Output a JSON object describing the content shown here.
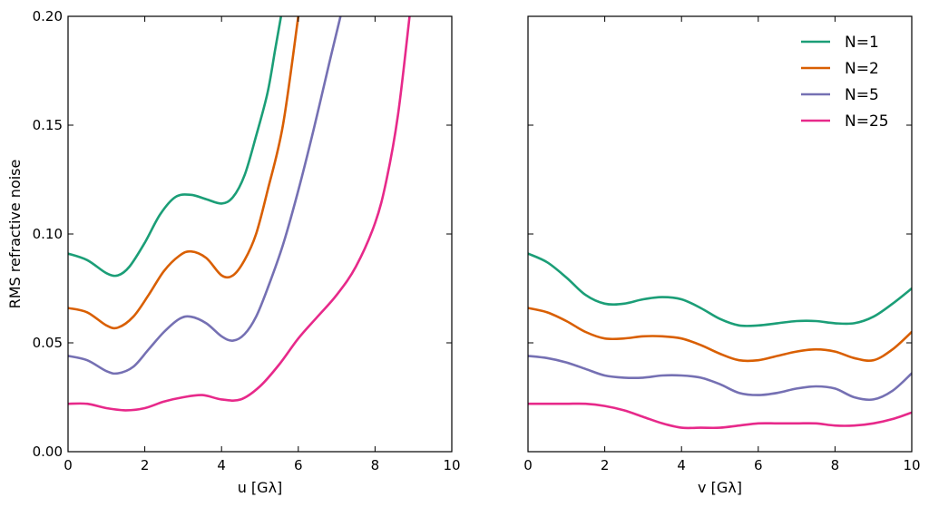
{
  "chart_data": [
    {
      "type": "line",
      "xlabel": "u [Gλ]",
      "ylabel": "RMS refractive noise",
      "xlim": [
        0,
        10
      ],
      "ylim": [
        0,
        0.2
      ],
      "xticks": [
        0,
        2,
        4,
        6,
        8,
        10
      ],
      "xtick_labels": [
        "0",
        "2",
        "4",
        "6",
        "8",
        "10"
      ],
      "yticks": [
        0,
        0.05,
        0.1,
        0.15,
        0.2
      ],
      "ytick_labels": [
        "0.00",
        "0.05",
        "0.10",
        "0.15",
        "0.20"
      ],
      "grid": false,
      "series": [
        {
          "name": "N=1",
          "color": "#1b9e77",
          "x": [
            0,
            0.5,
            1.0,
            1.3,
            1.6,
            2.0,
            2.4,
            2.8,
            3.2,
            3.6,
            4.0,
            4.3,
            4.6,
            4.9,
            5.2,
            5.4,
            5.55
          ],
          "y": [
            0.091,
            0.088,
            0.082,
            0.081,
            0.085,
            0.096,
            0.109,
            0.117,
            0.118,
            0.116,
            0.114,
            0.117,
            0.127,
            0.145,
            0.165,
            0.185,
            0.2
          ]
        },
        {
          "name": "N=2",
          "color": "#d95f02",
          "x": [
            0,
            0.5,
            1.0,
            1.3,
            1.7,
            2.1,
            2.5,
            2.9,
            3.2,
            3.6,
            4.0,
            4.3,
            4.6,
            4.9,
            5.2,
            5.6,
            6.0
          ],
          "y": [
            0.066,
            0.064,
            0.058,
            0.057,
            0.062,
            0.072,
            0.083,
            0.09,
            0.092,
            0.089,
            0.081,
            0.081,
            0.088,
            0.1,
            0.12,
            0.15,
            0.2
          ]
        },
        {
          "name": "N=5",
          "color": "#7570b3",
          "x": [
            0,
            0.5,
            1.0,
            1.3,
            1.7,
            2.1,
            2.5,
            2.9,
            3.2,
            3.6,
            4.0,
            4.3,
            4.6,
            4.9,
            5.2,
            5.6,
            6.0,
            6.4,
            6.8,
            7.1
          ],
          "y": [
            0.044,
            0.042,
            0.037,
            0.036,
            0.039,
            0.047,
            0.055,
            0.061,
            0.062,
            0.059,
            0.053,
            0.051,
            0.054,
            0.062,
            0.075,
            0.095,
            0.12,
            0.148,
            0.178,
            0.2
          ]
        },
        {
          "name": "N=25",
          "color": "#e7298a",
          "x": [
            0,
            0.5,
            1.0,
            1.5,
            2.0,
            2.5,
            3.0,
            3.5,
            4.0,
            4.5,
            5.0,
            5.5,
            6.0,
            6.5,
            7.0,
            7.5,
            8.0,
            8.3,
            8.6,
            8.9
          ],
          "y": [
            0.022,
            0.022,
            0.02,
            0.019,
            0.02,
            0.023,
            0.025,
            0.026,
            0.024,
            0.024,
            0.03,
            0.04,
            0.052,
            0.062,
            0.072,
            0.085,
            0.105,
            0.125,
            0.155,
            0.2
          ]
        }
      ]
    },
    {
      "type": "line",
      "xlabel": "v [Gλ]",
      "ylabel": "",
      "xlim": [
        0,
        10
      ],
      "ylim": [
        0,
        0.2
      ],
      "xticks": [
        0,
        2,
        4,
        6,
        8,
        10
      ],
      "xtick_labels": [
        "0",
        "2",
        "4",
        "6",
        "8",
        "10"
      ],
      "grid": false,
      "legend": {
        "location": "top-right",
        "entries": [
          "N=1",
          "N=2",
          "N=5",
          "N=25"
        ]
      },
      "series": [
        {
          "name": "N=1",
          "color": "#1b9e77",
          "x": [
            0,
            0.5,
            1.0,
            1.5,
            2.0,
            2.5,
            3.0,
            3.5,
            4.0,
            4.5,
            5.0,
            5.5,
            6.0,
            6.5,
            7.0,
            7.5,
            8.0,
            8.5,
            9.0,
            9.5,
            10.0
          ],
          "y": [
            0.091,
            0.087,
            0.08,
            0.072,
            0.068,
            0.068,
            0.07,
            0.071,
            0.07,
            0.066,
            0.061,
            0.058,
            0.058,
            0.059,
            0.06,
            0.06,
            0.059,
            0.059,
            0.062,
            0.068,
            0.075
          ]
        },
        {
          "name": "N=2",
          "color": "#d95f02",
          "x": [
            0,
            0.5,
            1.0,
            1.5,
            2.0,
            2.5,
            3.0,
            3.5,
            4.0,
            4.5,
            5.0,
            5.5,
            6.0,
            6.5,
            7.0,
            7.5,
            8.0,
            8.5,
            9.0,
            9.5,
            10.0
          ],
          "y": [
            0.066,
            0.064,
            0.06,
            0.055,
            0.052,
            0.052,
            0.053,
            0.053,
            0.052,
            0.049,
            0.045,
            0.042,
            0.042,
            0.044,
            0.046,
            0.047,
            0.046,
            0.043,
            0.042,
            0.047,
            0.055
          ]
        },
        {
          "name": "N=5",
          "color": "#7570b3",
          "x": [
            0,
            0.5,
            1.0,
            1.5,
            2.0,
            2.5,
            3.0,
            3.5,
            4.0,
            4.5,
            5.0,
            5.5,
            6.0,
            6.5,
            7.0,
            7.5,
            8.0,
            8.5,
            9.0,
            9.5,
            10.0
          ],
          "y": [
            0.044,
            0.043,
            0.041,
            0.038,
            0.035,
            0.034,
            0.034,
            0.035,
            0.035,
            0.034,
            0.031,
            0.027,
            0.026,
            0.027,
            0.029,
            0.03,
            0.029,
            0.025,
            0.024,
            0.028,
            0.036
          ]
        },
        {
          "name": "N=25",
          "color": "#e7298a",
          "x": [
            0,
            0.5,
            1.0,
            1.5,
            2.0,
            2.5,
            3.0,
            3.5,
            4.0,
            4.5,
            5.0,
            5.5,
            6.0,
            6.5,
            7.0,
            7.5,
            8.0,
            8.5,
            9.0,
            9.5,
            10.0
          ],
          "y": [
            0.022,
            0.022,
            0.022,
            0.022,
            0.021,
            0.019,
            0.016,
            0.013,
            0.011,
            0.011,
            0.011,
            0.012,
            0.013,
            0.013,
            0.013,
            0.013,
            0.012,
            0.012,
            0.013,
            0.015,
            0.018
          ]
        }
      ]
    }
  ]
}
